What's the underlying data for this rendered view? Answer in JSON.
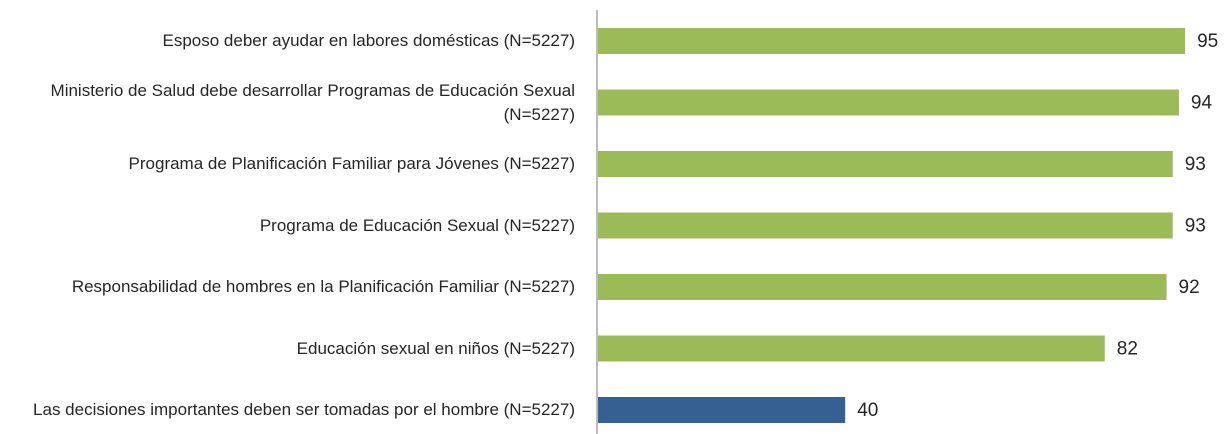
{
  "chart_data": {
    "type": "bar",
    "orientation": "horizontal",
    "categories": [
      "Esposo deber ayudar en labores domésticas (N=5227)",
      "Ministerio de Salud debe desarrollar Programas de Educación Sexual (N=5227)",
      "Programa de Planificación Familiar para Jóvenes (N=5227)",
      "Programa de Educación Sexual (N=5227)",
      "Responsabilidad de hombres en la Planificación Familiar (N=5227)",
      "Educación sexual en niños (N=5227)",
      "Las decisiones importantes deben ser tomadas por el hombre (N=5227)"
    ],
    "values": [
      95,
      94,
      93,
      93,
      92,
      82,
      40
    ],
    "colors": [
      "#9bbb59",
      "#9bbb59",
      "#9bbb59",
      "#9bbb59",
      "#9bbb59",
      "#9bbb59",
      "#366092"
    ]
  }
}
